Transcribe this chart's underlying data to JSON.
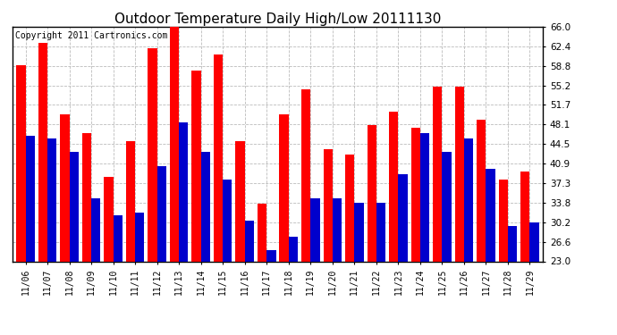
{
  "title": "Outdoor Temperature Daily High/Low 20111130",
  "copyright": "Copyright 2011 Cartronics.com",
  "dates": [
    "11/06",
    "11/07",
    "11/08",
    "11/09",
    "11/10",
    "11/11",
    "11/12",
    "11/13",
    "11/14",
    "11/15",
    "11/16",
    "11/17",
    "11/18",
    "11/19",
    "11/20",
    "11/21",
    "11/22",
    "11/23",
    "11/24",
    "11/25",
    "11/26",
    "11/27",
    "11/28",
    "11/29"
  ],
  "highs": [
    59.0,
    63.0,
    50.0,
    46.5,
    38.5,
    45.0,
    62.0,
    66.0,
    58.0,
    61.0,
    45.0,
    33.5,
    50.0,
    54.5,
    43.5,
    42.5,
    48.0,
    50.5,
    47.5,
    55.0,
    55.0,
    49.0,
    38.0,
    39.5
  ],
  "lows": [
    46.0,
    45.5,
    43.0,
    34.5,
    31.5,
    32.0,
    40.5,
    48.5,
    43.0,
    38.0,
    30.5,
    25.0,
    27.5,
    34.5,
    34.5,
    33.8,
    33.8,
    39.0,
    46.5,
    43.0,
    45.5,
    40.0,
    29.5,
    30.2
  ],
  "ylim": [
    23.0,
    66.0
  ],
  "yticks": [
    23.0,
    26.6,
    30.2,
    33.8,
    37.3,
    40.9,
    44.5,
    48.1,
    51.7,
    55.2,
    58.8,
    62.4,
    66.0
  ],
  "high_color": "#ff0000",
  "low_color": "#0000cc",
  "bg_color": "#ffffff",
  "plot_bg_color": "#ffffff",
  "grid_color": "#bbbbbb",
  "title_fontsize": 11,
  "copyright_fontsize": 7,
  "bar_width": 0.42
}
